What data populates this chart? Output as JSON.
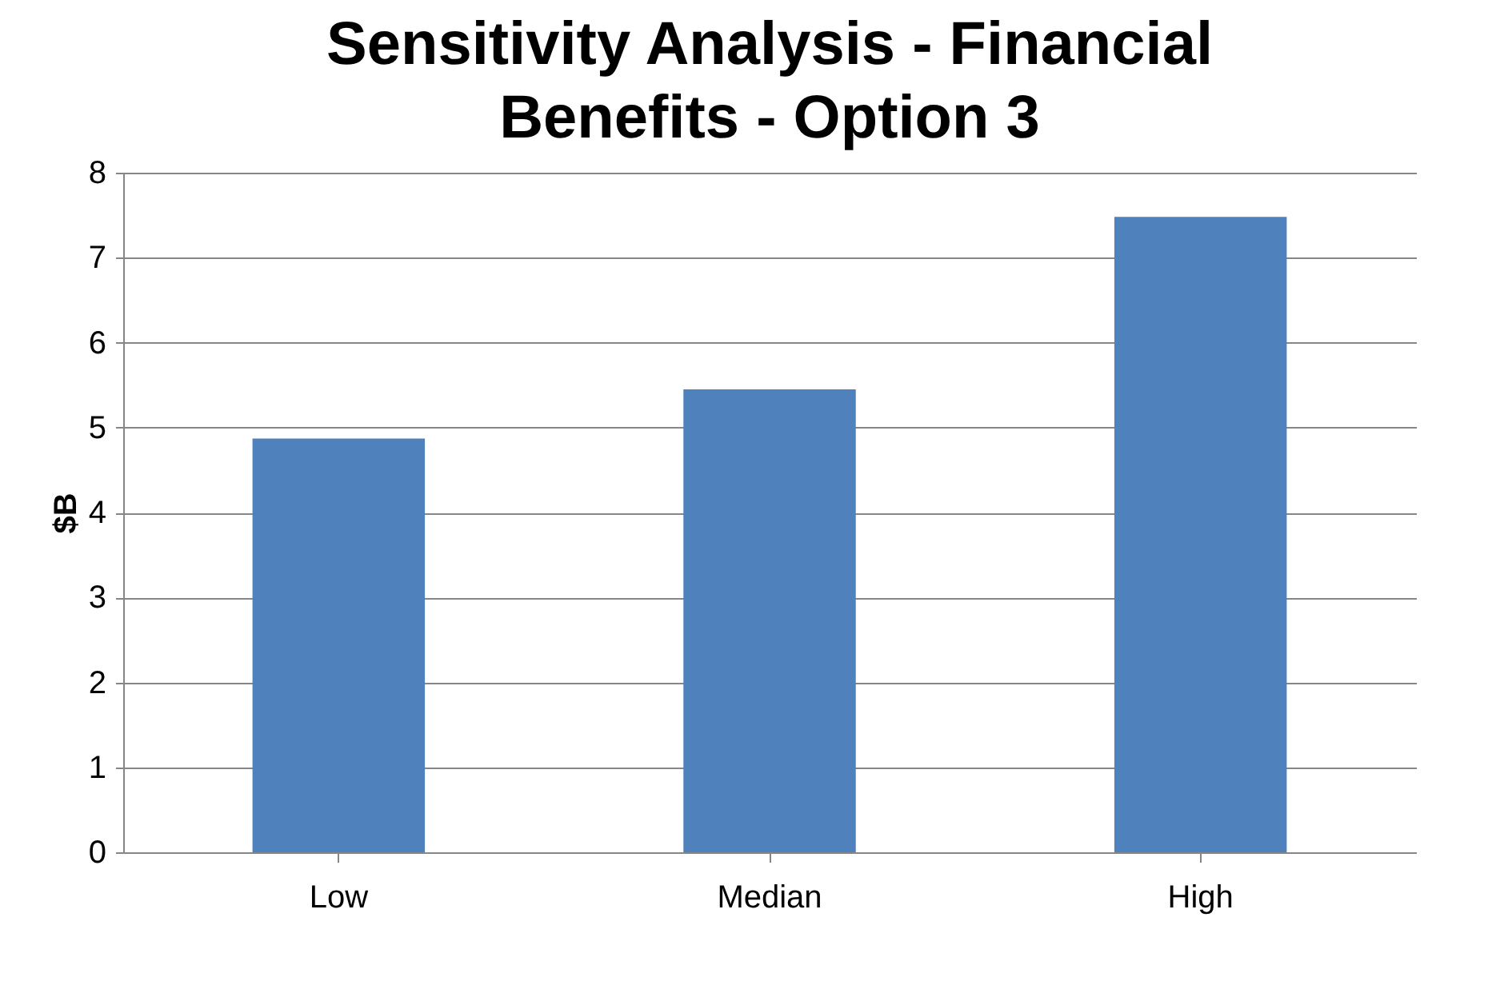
{
  "chart_data": {
    "type": "bar",
    "title": "Sensitivity Analysis - Financial Benefits - Option 3",
    "ylabel": "$B",
    "categories": [
      "Low",
      "Median",
      "High"
    ],
    "values": [
      4.87,
      5.45,
      7.48
    ],
    "color": "#4f81bd",
    "ylim": [
      0,
      8
    ],
    "yticks": [
      0,
      1,
      2,
      3,
      4,
      5,
      6,
      7,
      8
    ],
    "grid": "y"
  }
}
